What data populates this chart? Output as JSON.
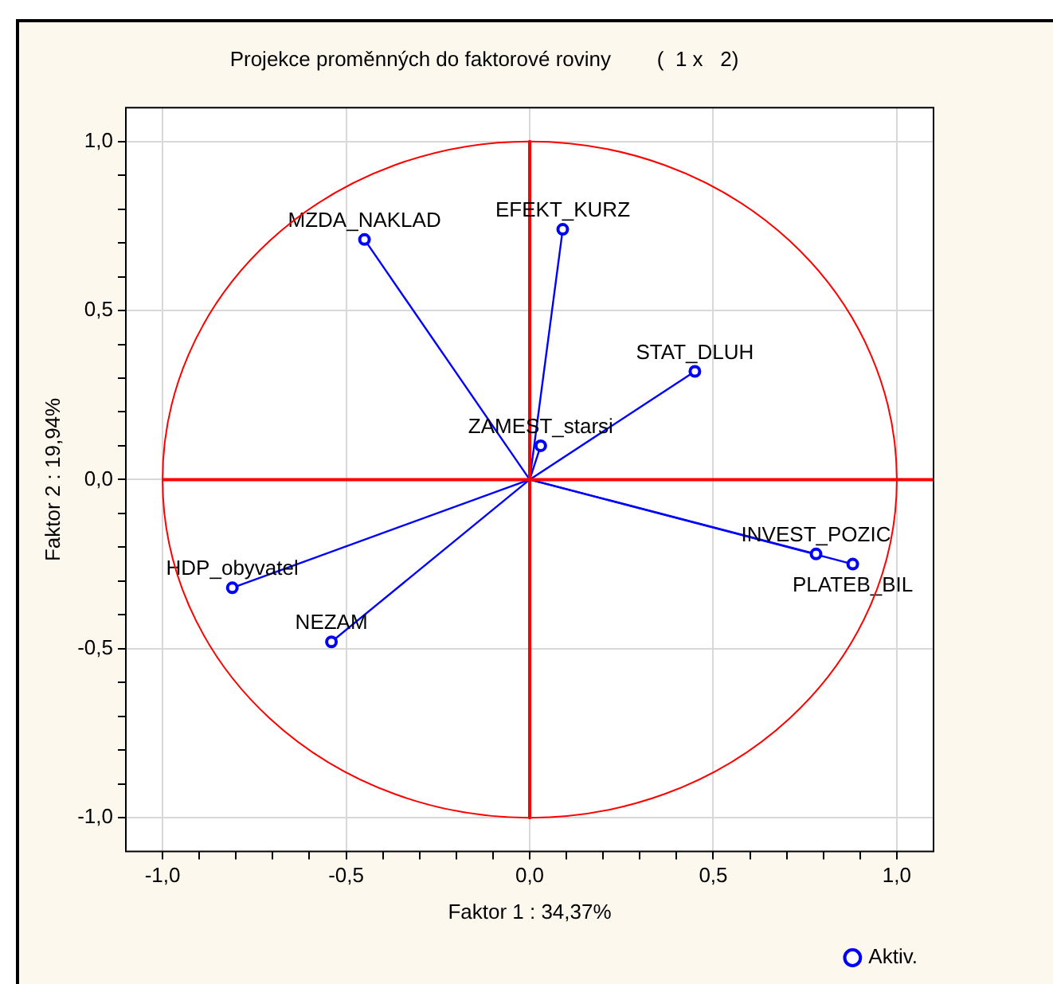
{
  "chart_data": {
    "type": "scatter",
    "title": "Projekce proměnných do faktorové roviny        (  1 x   2)",
    "xlabel": "Faktor 1 : 34,37%",
    "ylabel": "Faktor 2 : 19,94%",
    "xlim": [
      -1.1,
      1.1
    ],
    "ylim": [
      -1.1,
      1.1
    ],
    "xticks": [
      {
        "value": -1,
        "label": "-1,0"
      },
      {
        "value": -0.9,
        "label": null
      },
      {
        "value": -0.8,
        "label": null
      },
      {
        "value": -0.7,
        "label": null
      },
      {
        "value": -0.6,
        "label": null
      },
      {
        "value": -0.5,
        "label": "-0,5"
      },
      {
        "value": -0.4,
        "label": null
      },
      {
        "value": -0.3,
        "label": null
      },
      {
        "value": -0.2,
        "label": null
      },
      {
        "value": -0.1,
        "label": null
      },
      {
        "value": 0,
        "label": "0,0"
      },
      {
        "value": 0.1,
        "label": null
      },
      {
        "value": 0.2,
        "label": null
      },
      {
        "value": 0.3,
        "label": null
      },
      {
        "value": 0.4,
        "label": null
      },
      {
        "value": 0.5,
        "label": "0,5"
      },
      {
        "value": 0.6,
        "label": null
      },
      {
        "value": 0.7,
        "label": null
      },
      {
        "value": 0.8,
        "label": null
      },
      {
        "value": 0.9,
        "label": null
      },
      {
        "value": 1,
        "label": "1,0"
      }
    ],
    "yticks": [
      {
        "value": -1,
        "label": "-1,0"
      },
      {
        "value": -0.9,
        "label": null
      },
      {
        "value": -0.8,
        "label": null
      },
      {
        "value": -0.7,
        "label": null
      },
      {
        "value": -0.6,
        "label": null
      },
      {
        "value": -0.5,
        "label": "-0,5"
      },
      {
        "value": -0.4,
        "label": null
      },
      {
        "value": -0.3,
        "label": null
      },
      {
        "value": -0.2,
        "label": null
      },
      {
        "value": -0.1,
        "label": null
      },
      {
        "value": 0,
        "label": "0,0"
      },
      {
        "value": 0.1,
        "label": null
      },
      {
        "value": 0.2,
        "label": null
      },
      {
        "value": 0.3,
        "label": null
      },
      {
        "value": 0.4,
        "label": null
      },
      {
        "value": 0.5,
        "label": "0,5"
      },
      {
        "value": 0.6,
        "label": null
      },
      {
        "value": 0.7,
        "label": null
      },
      {
        "value": 0.8,
        "label": null
      },
      {
        "value": 0.9,
        "label": null
      },
      {
        "value": 1,
        "label": "1,0"
      }
    ],
    "grid": true,
    "legend": "bottom right",
    "marker": "circle",
    "series": [
      {
        "type": "line",
        "color": "#ff0000",
        "marker": "none",
        "x": [
          0,
          0
        ],
        "values": [
          1,
          -1
        ]
      },
      {
        "type": "line",
        "color": "#ff0000",
        "marker": "none",
        "x": [
          -1,
          1.1
        ],
        "values": [
          0,
          0
        ]
      },
      {
        "name": "Aktiv.",
        "type": "scatter",
        "color": "#0000ff",
        "x": [
          -0.45,
          0.09,
          0.45,
          0.03,
          -0.81,
          -0.54,
          0.78,
          0.88
        ],
        "values": [
          0.71,
          0.74,
          0.32,
          0.1,
          -0.32,
          -0.48,
          -0.22,
          -0.25
        ]
      }
    ],
    "annotations": [
      {
        "text": "MZDA_NAKLAD",
        "x": -0.45,
        "y": 0.71
      },
      {
        "text": "EFEKT_KURZ",
        "x": 0.09,
        "y": 0.74
      },
      {
        "text": "STAT_DLUH",
        "x": 0.45,
        "y": 0.32
      },
      {
        "text": "ZAMEST_starsi",
        "x": 0.03,
        "y": 0.1
      },
      {
        "text": "HDP_obyvatel",
        "x": -0.81,
        "y": -0.32
      },
      {
        "text": "NEZAM",
        "x": -0.54,
        "y": -0.48
      },
      {
        "text": "INVEST_POZIC",
        "x": 0.78,
        "y": -0.22
      },
      {
        "text": "PLATEB_BIL",
        "x": 0.88,
        "y": -0.25
      }
    ]
  }
}
